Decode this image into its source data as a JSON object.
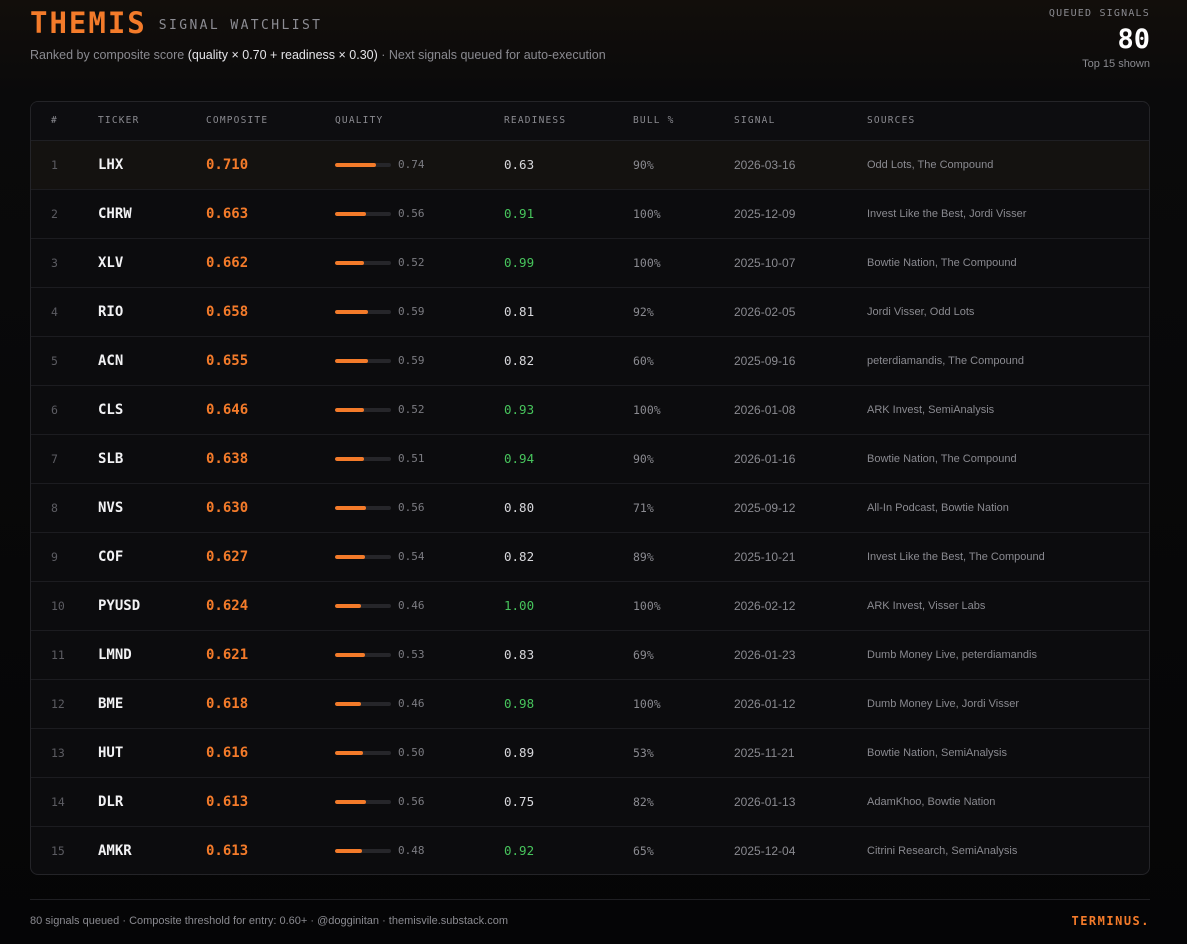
{
  "header": {
    "logo": "THEMIS",
    "title": "SIGNAL WATCHLIST",
    "subtitle_prefix": "Ranked by composite score ",
    "subtitle_formula": "(quality × 0.70 + readiness × 0.30)",
    "subtitle_suffix": " · Next signals queued for auto-execution"
  },
  "queued": {
    "label": "QUEUED SIGNALS",
    "count": "80",
    "note": "Top 15 shown"
  },
  "table": {
    "columns": {
      "rank": "#",
      "ticker": "TICKER",
      "composite": "COMPOSITE",
      "quality": "QUALITY",
      "readiness": "READINESS",
      "bull": "BULL %",
      "signal": "SIGNAL",
      "sources": "SOURCES"
    },
    "rows": [
      {
        "rank": "1",
        "ticker": "LHX",
        "composite": "0.710",
        "quality": "0.74",
        "quality_frac": 0.74,
        "readiness": "0.63",
        "bull": "90%",
        "signal": "2026-03-16",
        "sources": "Odd Lots, The Compound"
      },
      {
        "rank": "2",
        "ticker": "CHRW",
        "composite": "0.663",
        "quality": "0.56",
        "quality_frac": 0.56,
        "readiness": "0.91",
        "bull": "100%",
        "signal": "2025-12-09",
        "sources": "Invest Like the Best, Jordi Visser"
      },
      {
        "rank": "3",
        "ticker": "XLV",
        "composite": "0.662",
        "quality": "0.52",
        "quality_frac": 0.52,
        "readiness": "0.99",
        "bull": "100%",
        "signal": "2025-10-07",
        "sources": "Bowtie Nation, The Compound"
      },
      {
        "rank": "4",
        "ticker": "RIO",
        "composite": "0.658",
        "quality": "0.59",
        "quality_frac": 0.59,
        "readiness": "0.81",
        "bull": "92%",
        "signal": "2026-02-05",
        "sources": "Jordi Visser, Odd Lots"
      },
      {
        "rank": "5",
        "ticker": "ACN",
        "composite": "0.655",
        "quality": "0.59",
        "quality_frac": 0.59,
        "readiness": "0.82",
        "bull": "60%",
        "signal": "2025-09-16",
        "sources": "peterdiamandis, The Compound"
      },
      {
        "rank": "6",
        "ticker": "CLS",
        "composite": "0.646",
        "quality": "0.52",
        "quality_frac": 0.52,
        "readiness": "0.93",
        "bull": "100%",
        "signal": "2026-01-08",
        "sources": "ARK Invest, SemiAnalysis"
      },
      {
        "rank": "7",
        "ticker": "SLB",
        "composite": "0.638",
        "quality": "0.51",
        "quality_frac": 0.51,
        "readiness": "0.94",
        "bull": "90%",
        "signal": "2026-01-16",
        "sources": "Bowtie Nation, The Compound"
      },
      {
        "rank": "8",
        "ticker": "NVS",
        "composite": "0.630",
        "quality": "0.56",
        "quality_frac": 0.56,
        "readiness": "0.80",
        "bull": "71%",
        "signal": "2025-09-12",
        "sources": "All-In Podcast, Bowtie Nation"
      },
      {
        "rank": "9",
        "ticker": "COF",
        "composite": "0.627",
        "quality": "0.54",
        "quality_frac": 0.54,
        "readiness": "0.82",
        "bull": "89%",
        "signal": "2025-10-21",
        "sources": "Invest Like the Best, The Compound"
      },
      {
        "rank": "10",
        "ticker": "PYUSD",
        "composite": "0.624",
        "quality": "0.46",
        "quality_frac": 0.46,
        "readiness": "1.00",
        "bull": "100%",
        "signal": "2026-02-12",
        "sources": "ARK Invest, Visser Labs"
      },
      {
        "rank": "11",
        "ticker": "LMND",
        "composite": "0.621",
        "quality": "0.53",
        "quality_frac": 0.53,
        "readiness": "0.83",
        "bull": "69%",
        "signal": "2026-01-23",
        "sources": "Dumb Money Live, peterdiamandis"
      },
      {
        "rank": "12",
        "ticker": "BME",
        "composite": "0.618",
        "quality": "0.46",
        "quality_frac": 0.46,
        "readiness": "0.98",
        "bull": "100%",
        "signal": "2026-01-12",
        "sources": "Dumb Money Live, Jordi Visser"
      },
      {
        "rank": "13",
        "ticker": "HUT",
        "composite": "0.616",
        "quality": "0.50",
        "quality_frac": 0.5,
        "readiness": "0.89",
        "bull": "53%",
        "signal": "2025-11-21",
        "sources": "Bowtie Nation, SemiAnalysis"
      },
      {
        "rank": "14",
        "ticker": "DLR",
        "composite": "0.613",
        "quality": "0.56",
        "quality_frac": 0.56,
        "readiness": "0.75",
        "bull": "82%",
        "signal": "2026-01-13",
        "sources": "AdamKhoo, Bowtie Nation"
      },
      {
        "rank": "15",
        "ticker": "AMKR",
        "composite": "0.613",
        "quality": "0.48",
        "quality_frac": 0.48,
        "readiness": "0.92",
        "bull": "65%",
        "signal": "2025-12-04",
        "sources": "Citrini Research, SemiAnalysis"
      }
    ]
  },
  "footer": {
    "text": "80 signals queued · Composite threshold for entry: 0.60+ · @dogginitan · themisvile.substack.com",
    "brand": "TERMINUS."
  },
  "colors": {
    "accent": "#f47b2a",
    "readiness_high": "#47c45c",
    "readiness_normal": "#d8d8dc"
  }
}
